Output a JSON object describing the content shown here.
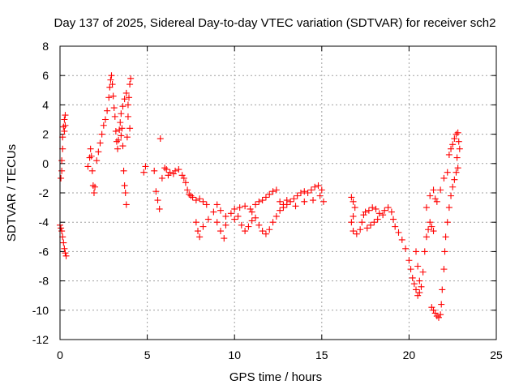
{
  "chart_data": {
    "type": "scatter",
    "title": "Day 137 of 2025, Sidereal Day-to-day VTEC variation (SDTVAR) for receiver sch2",
    "xlabel": "GPS time / hours",
    "ylabel": "SDTVAR / TECUs",
    "xlim": [
      0,
      25
    ],
    "ylim": [
      -12,
      8
    ],
    "xticks": [
      0,
      5,
      10,
      15,
      20,
      25
    ],
    "xtick_labels": [
      "0",
      "5",
      "10",
      "15",
      "20",
      "25"
    ],
    "yticks": [
      -12,
      -10,
      -8,
      -6,
      -4,
      -2,
      0,
      2,
      4,
      6,
      8
    ],
    "ytick_labels": [
      "-12",
      "-10",
      "-8",
      "-6",
      "-4",
      "-2",
      "0",
      "2",
      "4",
      "6",
      "8"
    ],
    "grid": true,
    "marker": "+",
    "color": "#ff0000",
    "series": [
      {
        "name": "sch2",
        "points": [
          [
            0.0,
            -4.2
          ],
          [
            0.05,
            -4.4
          ],
          [
            0.1,
            -4.6
          ],
          [
            0.15,
            -5.0
          ],
          [
            0.2,
            -5.4
          ],
          [
            0.25,
            -5.8
          ],
          [
            0.3,
            -6.1
          ],
          [
            0.35,
            -6.3
          ],
          [
            0.05,
            -1.0
          ],
          [
            0.1,
            -0.5
          ],
          [
            0.1,
            0.2
          ],
          [
            0.15,
            1.0
          ],
          [
            0.15,
            1.8
          ],
          [
            0.2,
            2.5
          ],
          [
            0.25,
            3.0
          ],
          [
            0.3,
            3.3
          ],
          [
            0.25,
            2.2
          ],
          [
            0.3,
            2.6
          ],
          [
            1.6,
            -0.2
          ],
          [
            1.7,
            0.4
          ],
          [
            1.75,
            1.0
          ],
          [
            1.8,
            0.5
          ],
          [
            1.85,
            -0.5
          ],
          [
            1.9,
            -1.5
          ],
          [
            1.95,
            -2.0
          ],
          [
            2.0,
            -1.6
          ],
          [
            2.1,
            0.2
          ],
          [
            2.2,
            0.8
          ],
          [
            2.3,
            1.4
          ],
          [
            2.4,
            2.0
          ],
          [
            2.5,
            2.6
          ],
          [
            2.6,
            3.0
          ],
          [
            2.7,
            3.6
          ],
          [
            2.8,
            4.5
          ],
          [
            2.85,
            5.2
          ],
          [
            2.9,
            5.7
          ],
          [
            2.95,
            6.0
          ],
          [
            3.0,
            5.4
          ],
          [
            3.05,
            4.6
          ],
          [
            3.1,
            3.8
          ],
          [
            3.15,
            3.2
          ],
          [
            3.2,
            2.2
          ],
          [
            3.25,
            1.5
          ],
          [
            3.3,
            1.0
          ],
          [
            3.35,
            1.6
          ],
          [
            3.4,
            2.3
          ],
          [
            3.45,
            2.8
          ],
          [
            3.5,
            3.4
          ],
          [
            3.55,
            2.4
          ],
          [
            3.6,
            1.2
          ],
          [
            3.65,
            -0.5
          ],
          [
            3.7,
            -1.5
          ],
          [
            3.75,
            -2.0
          ],
          [
            3.8,
            -2.8
          ],
          [
            3.85,
            1.8
          ],
          [
            3.9,
            3.2
          ],
          [
            3.95,
            4.5
          ],
          [
            4.0,
            5.4
          ],
          [
            4.05,
            5.8
          ],
          [
            3.6,
            3.9
          ],
          [
            3.7,
            4.4
          ],
          [
            3.8,
            4.8
          ],
          [
            3.9,
            4.0
          ],
          [
            4.0,
            2.4
          ],
          [
            3.5,
            1.9
          ],
          [
            4.8,
            -0.6
          ],
          [
            4.9,
            -0.2
          ],
          [
            5.4,
            -0.5
          ],
          [
            5.5,
            -1.9
          ],
          [
            5.6,
            -2.5
          ],
          [
            5.7,
            -3.1
          ],
          [
            5.75,
            1.7
          ],
          [
            5.85,
            -1.0
          ],
          [
            6.0,
            -0.3
          ],
          [
            6.1,
            -0.4
          ],
          [
            6.2,
            -0.8
          ],
          [
            6.3,
            -0.6
          ],
          [
            6.5,
            -0.7
          ],
          [
            6.6,
            -0.5
          ],
          [
            6.8,
            -0.4
          ],
          [
            7.0,
            -0.8
          ],
          [
            7.1,
            -1.0
          ],
          [
            7.2,
            -1.3
          ],
          [
            7.3,
            -1.8
          ],
          [
            7.4,
            -2.1
          ],
          [
            7.5,
            -2.2
          ],
          [
            7.6,
            -2.3
          ],
          [
            7.8,
            -2.5
          ],
          [
            8.0,
            -2.4
          ],
          [
            8.2,
            -2.6
          ],
          [
            8.4,
            -2.8
          ],
          [
            7.8,
            -4.0
          ],
          [
            7.9,
            -4.6
          ],
          [
            8.0,
            -5.0
          ],
          [
            8.2,
            -4.3
          ],
          [
            8.5,
            -3.8
          ],
          [
            8.8,
            -3.3
          ],
          [
            9.0,
            -4.0
          ],
          [
            9.2,
            -4.6
          ],
          [
            9.4,
            -5.1
          ],
          [
            9.5,
            -4.2
          ],
          [
            9.0,
            -2.8
          ],
          [
            9.2,
            -3.2
          ],
          [
            9.5,
            -3.6
          ],
          [
            9.8,
            -3.4
          ],
          [
            10.0,
            -3.1
          ],
          [
            10.2,
            -3.6
          ],
          [
            10.4,
            -4.2
          ],
          [
            10.6,
            -4.6
          ],
          [
            10.8,
            -4.3
          ],
          [
            11.0,
            -3.9
          ],
          [
            10.0,
            -3.8
          ],
          [
            10.3,
            -3.0
          ],
          [
            10.6,
            -2.9
          ],
          [
            10.9,
            -3.1
          ],
          [
            11.2,
            -2.8
          ],
          [
            11.4,
            -2.6
          ],
          [
            11.6,
            -2.5
          ],
          [
            11.8,
            -2.3
          ],
          [
            12.0,
            -2.1
          ],
          [
            12.2,
            -1.9
          ],
          [
            12.4,
            -1.8
          ],
          [
            11.0,
            -3.3
          ],
          [
            11.2,
            -3.7
          ],
          [
            11.4,
            -4.2
          ],
          [
            11.6,
            -4.6
          ],
          [
            11.8,
            -4.8
          ],
          [
            12.0,
            -4.5
          ],
          [
            12.2,
            -4.0
          ],
          [
            12.4,
            -3.6
          ],
          [
            12.6,
            -3.2
          ],
          [
            12.8,
            -3.0
          ],
          [
            13.0,
            -2.8
          ],
          [
            13.2,
            -2.6
          ],
          [
            13.4,
            -2.4
          ],
          [
            13.6,
            -2.2
          ],
          [
            13.8,
            -2.0
          ],
          [
            14.0,
            -1.9
          ],
          [
            14.2,
            -2.0
          ],
          [
            14.4,
            -1.8
          ],
          [
            14.6,
            -1.6
          ],
          [
            14.8,
            -1.5
          ],
          [
            15.0,
            -1.8
          ],
          [
            15.1,
            -2.6
          ],
          [
            12.6,
            -2.6
          ],
          [
            12.8,
            -2.8
          ],
          [
            13.0,
            -2.5
          ],
          [
            13.5,
            -2.9
          ],
          [
            14.0,
            -2.6
          ],
          [
            14.5,
            -2.5
          ],
          [
            14.9,
            -2.2
          ],
          [
            16.7,
            -2.3
          ],
          [
            16.8,
            -2.6
          ],
          [
            16.9,
            -3.0
          ],
          [
            16.8,
            -3.6
          ],
          [
            16.7,
            -4.0
          ],
          [
            16.8,
            -4.6
          ],
          [
            17.0,
            -4.8
          ],
          [
            17.2,
            -4.5
          ],
          [
            17.3,
            -4.0
          ],
          [
            17.4,
            -3.5
          ],
          [
            17.5,
            -3.3
          ],
          [
            17.7,
            -3.2
          ],
          [
            17.9,
            -3.0
          ],
          [
            18.1,
            -3.1
          ],
          [
            18.3,
            -3.4
          ],
          [
            18.5,
            -3.5
          ],
          [
            18.6,
            -3.2
          ],
          [
            18.8,
            -3.0
          ],
          [
            19.0,
            -3.3
          ],
          [
            19.1,
            -3.8
          ],
          [
            17.6,
            -4.4
          ],
          [
            17.8,
            -4.2
          ],
          [
            18.0,
            -4.0
          ],
          [
            18.2,
            -3.8
          ],
          [
            19.2,
            -4.3
          ],
          [
            19.4,
            -4.7
          ],
          [
            19.6,
            -5.2
          ],
          [
            19.8,
            -5.8
          ],
          [
            20.0,
            -6.6
          ],
          [
            20.1,
            -7.2
          ],
          [
            20.2,
            -7.8
          ],
          [
            20.3,
            -8.2
          ],
          [
            20.4,
            -8.6
          ],
          [
            20.5,
            -9.0
          ],
          [
            20.6,
            -8.8
          ],
          [
            20.7,
            -8.4
          ],
          [
            20.8,
            -7.4
          ],
          [
            20.9,
            -6.0
          ],
          [
            21.0,
            -5.0
          ],
          [
            21.1,
            -4.5
          ],
          [
            21.2,
            -4.0
          ],
          [
            21.3,
            -4.3
          ],
          [
            21.4,
            -4.6
          ],
          [
            20.4,
            -6.0
          ],
          [
            20.5,
            -7.0
          ],
          [
            20.6,
            -8.0
          ],
          [
            21.3,
            -9.8
          ],
          [
            21.4,
            -10.0
          ],
          [
            21.5,
            -10.2
          ],
          [
            21.6,
            -10.4
          ],
          [
            21.7,
            -10.5
          ],
          [
            21.8,
            -10.3
          ],
          [
            21.85,
            -9.6
          ],
          [
            21.9,
            -8.6
          ],
          [
            22.0,
            -7.2
          ],
          [
            22.05,
            -6.0
          ],
          [
            22.1,
            -5.0
          ],
          [
            22.2,
            -4.0
          ],
          [
            22.3,
            -3.0
          ],
          [
            22.4,
            -2.2
          ],
          [
            22.5,
            -1.6
          ],
          [
            22.6,
            -1.1
          ],
          [
            22.7,
            -0.6
          ],
          [
            22.8,
            -0.3
          ],
          [
            21.0,
            -3.0
          ],
          [
            21.2,
            -2.2
          ],
          [
            21.4,
            -1.8
          ],
          [
            21.5,
            -2.4
          ],
          [
            21.6,
            -2.6
          ],
          [
            21.8,
            -1.8
          ],
          [
            22.0,
            -1.0
          ],
          [
            22.2,
            -0.6
          ],
          [
            22.3,
            0.6
          ],
          [
            22.4,
            1.0
          ],
          [
            22.5,
            1.3
          ],
          [
            22.6,
            1.7
          ],
          [
            22.7,
            2.0
          ],
          [
            22.8,
            2.1
          ],
          [
            22.85,
            1.5
          ],
          [
            22.9,
            1.0
          ],
          [
            22.75,
            0.4
          ]
        ]
      }
    ]
  }
}
